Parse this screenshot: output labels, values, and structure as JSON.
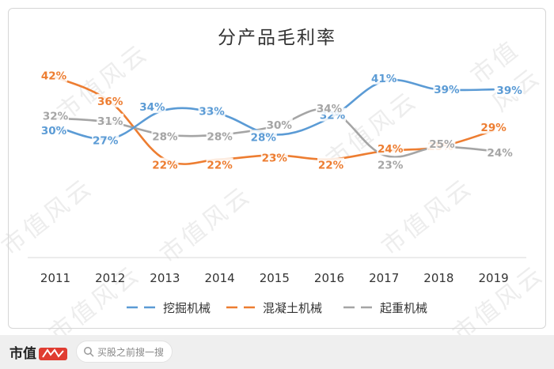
{
  "chart_data": {
    "type": "line",
    "title": "分产品毛利率",
    "categories": [
      "2011",
      "2012",
      "2013",
      "2014",
      "2015",
      "2016",
      "2017",
      "2018",
      "2019"
    ],
    "series": [
      {
        "name": "挖掘机械",
        "color": "#5b9bd5",
        "values": [
          30,
          27,
          34,
          33,
          28,
          32,
          41,
          39,
          39
        ],
        "labels": [
          "30%",
          "27%",
          "34%",
          "33%",
          "28%",
          "32%",
          "41%",
          "39%",
          "39%"
        ]
      },
      {
        "name": "混凝土机械",
        "color": "#ed7d31",
        "values": [
          42,
          36,
          22,
          22,
          23,
          22,
          24,
          25,
          29
        ],
        "labels": [
          "42%",
          "36%",
          "22%",
          "22%",
          "23%",
          "22%",
          "24%",
          "25%",
          "29%"
        ]
      },
      {
        "name": "起重机械",
        "color": "#a5a5a5",
        "values": [
          32,
          31,
          28,
          28,
          30,
          34,
          23,
          25,
          24
        ],
        "labels": [
          "32%",
          "31%",
          "28%",
          "28%",
          "30%",
          "34%",
          "23%",
          "25%",
          "24%"
        ]
      }
    ],
    "legend_position": "bottom",
    "grid": false
  },
  "watermark": "市值风云",
  "footer": {
    "logo_text": "市值",
    "search_placeholder": "买股之前搜一搜"
  }
}
